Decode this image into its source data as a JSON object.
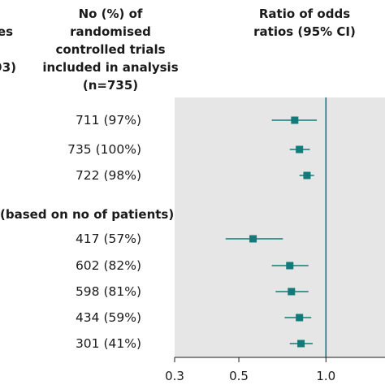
{
  "header": {
    "left_fragment": "es",
    "left_fragment_2": "93)",
    "count_column": "No (%) of randomised controlled trials included in analysis (n=735)",
    "ratio_column": "Ratio of odds ratios (95% CI)"
  },
  "section_label": "(based on no of patients)",
  "chart_data": {
    "type": "forest",
    "xscale": "log",
    "xlim": [
      0.3,
      1.6
    ],
    "xticks": [
      0.3,
      0.5,
      1.0
    ],
    "xtick_labels": [
      "0.3",
      "0.5",
      "1.0"
    ],
    "reference_line": 1.0,
    "colors": {
      "marker": "#137a7a",
      "panel": "#e6e6e6",
      "reference": "#137a7a"
    },
    "rows": [
      {
        "count": "711 (97%)",
        "estimate": 0.78,
        "lower": 0.65,
        "upper": 0.93
      },
      {
        "count": "735 (100%)",
        "estimate": 0.81,
        "lower": 0.75,
        "upper": 0.88
      },
      {
        "count": "722 (98%)",
        "estimate": 0.86,
        "lower": 0.81,
        "upper": 0.91
      },
      {
        "count": "417 (57%)",
        "estimate": 0.56,
        "lower": 0.45,
        "upper": 0.71
      },
      {
        "count": "602 (82%)",
        "estimate": 0.75,
        "lower": 0.65,
        "upper": 0.87
      },
      {
        "count": "598 (81%)",
        "estimate": 0.76,
        "lower": 0.67,
        "upper": 0.87
      },
      {
        "count": "434 (59%)",
        "estimate": 0.81,
        "lower": 0.72,
        "upper": 0.89
      },
      {
        "count": "301 (41%)",
        "estimate": 0.82,
        "lower": 0.75,
        "upper": 0.9
      }
    ]
  }
}
